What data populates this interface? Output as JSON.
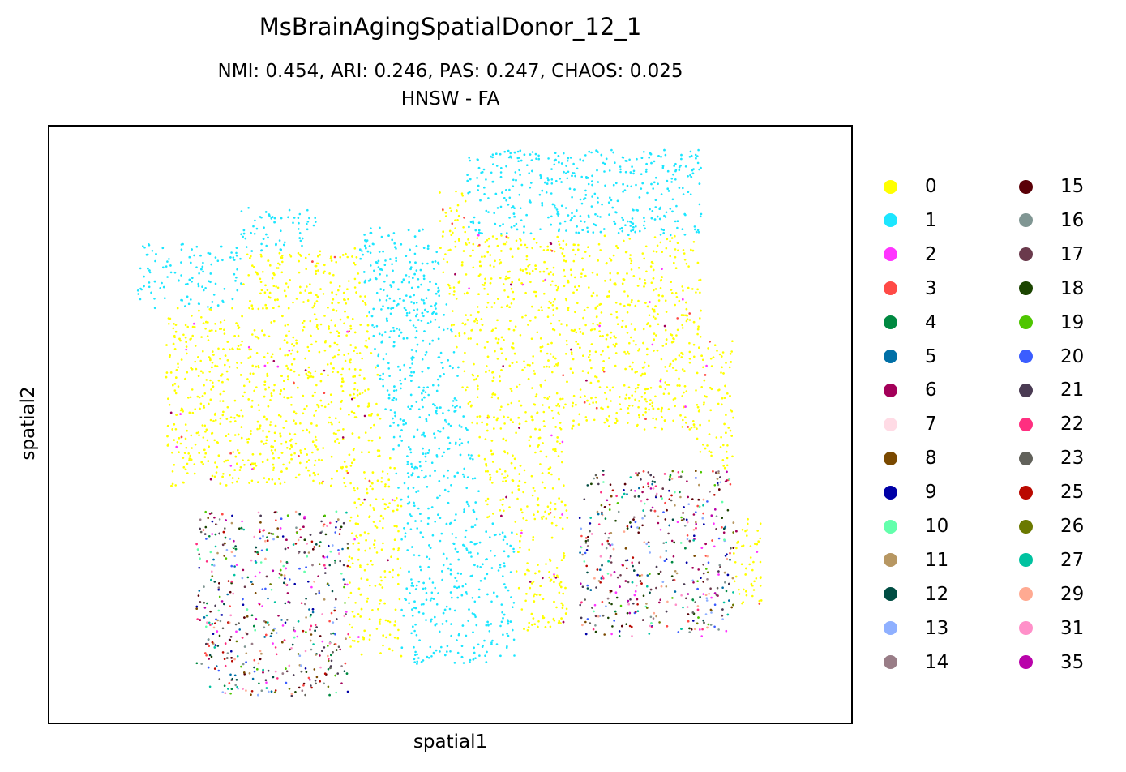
{
  "chart_data": {
    "type": "scatter",
    "title": "MsBrainAgingSpatialDonor_12_1",
    "subtitle_lines": [
      "NMI: 0.454,  ARI: 0.246,  PAS: 0.247,  CHAOS: 0.025",
      "HNSW - FA"
    ],
    "xlabel": "spatial1",
    "ylabel": "spatial2",
    "axis_ticks": "none",
    "grid": false,
    "legend_placement": "right, outside plot, 2 columns",
    "legend": [
      {
        "label": "0",
        "color": "#ffff00"
      },
      {
        "label": "1",
        "color": "#1ce6ff"
      },
      {
        "label": "2",
        "color": "#ff34ff"
      },
      {
        "label": "3",
        "color": "#ff4a46"
      },
      {
        "label": "4",
        "color": "#008941"
      },
      {
        "label": "5",
        "color": "#006fa6"
      },
      {
        "label": "6",
        "color": "#a30059"
      },
      {
        "label": "7",
        "color": "#ffdbe5"
      },
      {
        "label": "8",
        "color": "#7a4900"
      },
      {
        "label": "9",
        "color": "#0000a6"
      },
      {
        "label": "10",
        "color": "#63ffac"
      },
      {
        "label": "11",
        "color": "#b79762"
      },
      {
        "label": "12",
        "color": "#004d43"
      },
      {
        "label": "13",
        "color": "#8fb0ff"
      },
      {
        "label": "14",
        "color": "#997d87"
      },
      {
        "label": "15",
        "color": "#5a0007"
      },
      {
        "label": "16",
        "color": "#809693"
      },
      {
        "label": "17",
        "color": "#6a3a4c"
      },
      {
        "label": "18",
        "color": "#1b4400"
      },
      {
        "label": "19",
        "color": "#4fc601"
      },
      {
        "label": "20",
        "color": "#3b5dff"
      },
      {
        "label": "21",
        "color": "#4a3b53"
      },
      {
        "label": "22",
        "color": "#ff2f80"
      },
      {
        "label": "23",
        "color": "#61615a"
      },
      {
        "label": "25",
        "color": "#ba0900"
      },
      {
        "label": "26",
        "color": "#6b7900"
      },
      {
        "label": "27",
        "color": "#00c2a0"
      },
      {
        "label": "29",
        "color": "#ffaa92"
      },
      {
        "label": "31",
        "color": "#ff90c9"
      },
      {
        "label": "35",
        "color": "#b903aa"
      }
    ]
  }
}
